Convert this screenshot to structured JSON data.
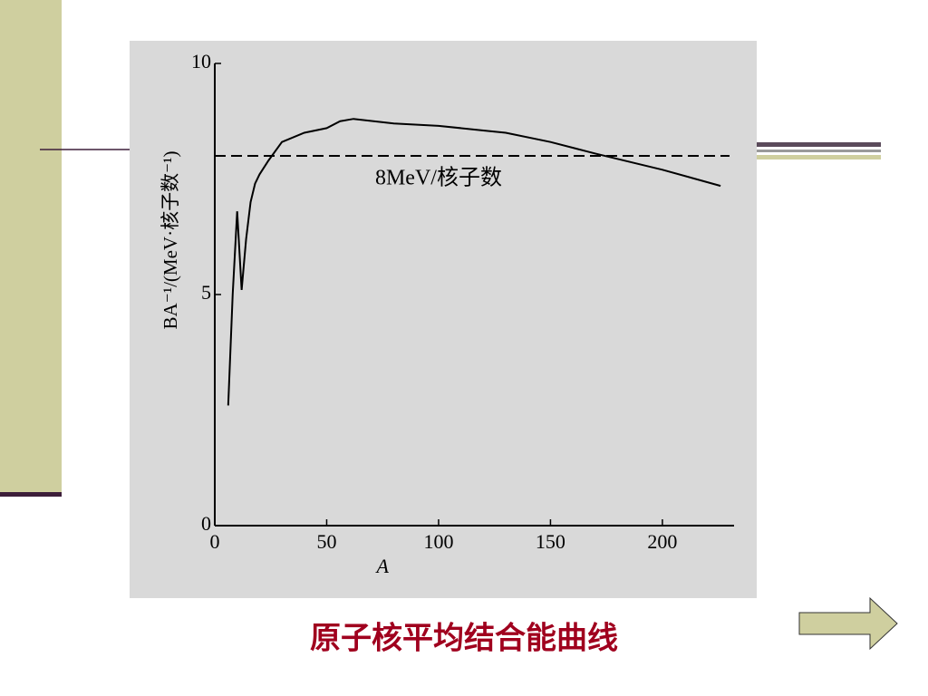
{
  "chart_data": {
    "type": "line",
    "title": "原子核平均结合能曲线",
    "xlabel": "A",
    "ylabel": "BA⁻¹/(MeV·核子数⁻¹)",
    "x": [
      6,
      8,
      10,
      12,
      14,
      16,
      18,
      20,
      24,
      30,
      40,
      50,
      56,
      62,
      80,
      100,
      120,
      130,
      150,
      170,
      200,
      226
    ],
    "series": [
      {
        "color": "#000000",
        "values": [
          2.6,
          5.0,
          6.8,
          5.1,
          6.2,
          7.0,
          7.4,
          7.6,
          7.9,
          8.3,
          8.5,
          8.6,
          8.75,
          8.8,
          8.7,
          8.65,
          8.55,
          8.5,
          8.3,
          8.05,
          7.7,
          7.35
        ]
      }
    ],
    "reference_line": {
      "value": 8,
      "label": "8MeV/核子数"
    },
    "xlim": [
      0,
      230
    ],
    "ylim": [
      0,
      10
    ],
    "xticks": [
      0,
      50,
      100,
      150,
      200
    ],
    "yticks": [
      0,
      5,
      10
    ]
  }
}
